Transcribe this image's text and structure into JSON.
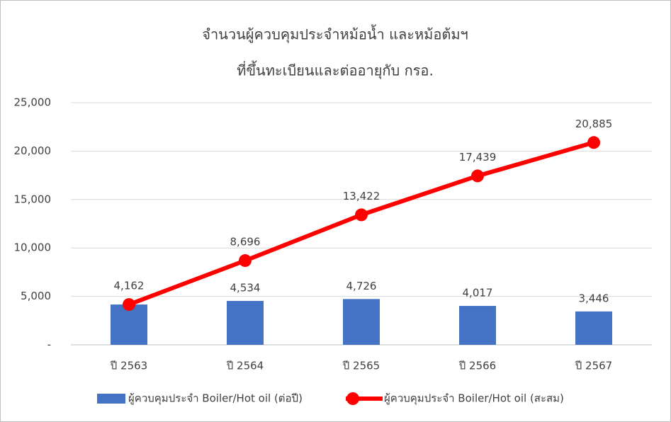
{
  "chart_data": {
    "type": "bar-line",
    "title": [
      "จำนวนผู้ควบคุมประจำหม้อน้ำ และหม้อต้มฯ",
      "ที่ขึ้นทะเบียนและต่ออายุกับ กรอ."
    ],
    "categories": [
      "ปี 2563",
      "ปี 2564",
      "ปี 2565",
      "ปี 2566",
      "ปี 2567"
    ],
    "series": [
      {
        "name": "ผู้ควบคุมประจำ Boiler/Hot oil (ต่อปี)",
        "type": "bar",
        "color": "#4472c4",
        "values": [
          4162,
          4534,
          4726,
          4017,
          3446
        ],
        "value_labels": [
          null,
          "4,534",
          "4,726",
          "4,017",
          "3,446"
        ]
      },
      {
        "name": "ผู้ควบคุมประจำ Boiler/Hot oil (สะสม)",
        "type": "line",
        "color": "#ff0000",
        "values": [
          4162,
          8696,
          13422,
          17439,
          20885
        ],
        "value_labels": [
          "4,162",
          "8,696",
          "13,422",
          "17,439",
          "20,885"
        ]
      }
    ],
    "ylim": [
      0,
      25000
    ],
    "yticks": [
      {
        "value": 0,
        "label": "-"
      },
      {
        "value": 5000,
        "label": "5,000"
      },
      {
        "value": 10000,
        "label": "10,000"
      },
      {
        "value": 15000,
        "label": "15,000"
      },
      {
        "value": 20000,
        "label": "20,000"
      },
      {
        "value": 25000,
        "label": "25,000"
      }
    ],
    "grid": true,
    "legend": "bottom"
  }
}
